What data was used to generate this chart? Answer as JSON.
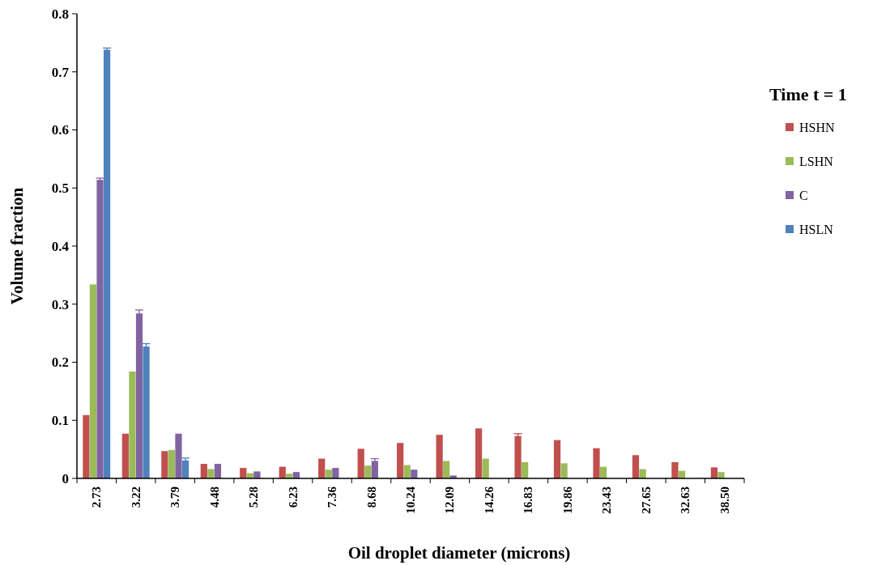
{
  "chart_data": {
    "type": "bar",
    "xlabel": "Oil droplet diameter (microns)",
    "ylabel": "Volume fraction",
    "legend_title": "Time t = 1",
    "legend": "right",
    "categories": [
      "2.73",
      "3.22",
      "3.79",
      "4.48",
      "5.28",
      "6.23",
      "7.36",
      "8.68",
      "10.24",
      "12.09",
      "14.26",
      "16.83",
      "19.86",
      "23.43",
      "27.65",
      "32.63",
      "38.50"
    ],
    "series": [
      {
        "name": "HSHN",
        "color": "#c0504d",
        "values": [
          0.109,
          0.077,
          0.047,
          0.025,
          0.018,
          0.02,
          0.034,
          0.051,
          0.061,
          0.075,
          0.086,
          0.073,
          0.066,
          0.052,
          0.04,
          0.028,
          0.019
        ],
        "errors": [
          null,
          null,
          null,
          null,
          null,
          null,
          null,
          null,
          null,
          null,
          null,
          0.004,
          null,
          null,
          null,
          null,
          null
        ]
      },
      {
        "name": "LSHN",
        "color": "#9bbb59",
        "values": [
          0.334,
          0.184,
          0.049,
          0.016,
          0.009,
          0.008,
          0.015,
          0.022,
          0.023,
          0.03,
          0.034,
          0.028,
          0.026,
          0.02,
          0.016,
          0.013,
          0.011
        ]
      },
      {
        "name": "C",
        "color": "#8064a2",
        "values": [
          0.514,
          0.284,
          0.077,
          0.025,
          0.012,
          0.011,
          0.018,
          0.03,
          0.015,
          0.005,
          null,
          0,
          0,
          0,
          0,
          0,
          0
        ],
        "errors": [
          0.003,
          0.006,
          null,
          null,
          null,
          null,
          null,
          0.004,
          null,
          null,
          null,
          null,
          null,
          null,
          null,
          null,
          null
        ]
      },
      {
        "name": "HSLN",
        "color": "#4f81bd",
        "values": [
          0.738,
          0.227,
          0.031,
          null,
          null,
          null,
          0,
          0,
          0,
          0,
          0,
          0,
          0,
          0,
          0,
          0,
          0
        ],
        "errors": [
          0.003,
          0.005,
          0.004,
          null,
          null,
          null,
          null,
          null,
          null,
          null,
          null,
          null,
          null,
          null,
          null,
          null,
          null
        ]
      }
    ],
    "ylim": [
      0,
      0.8
    ],
    "yticks": [
      0,
      0.1,
      0.2,
      0.3,
      0.4,
      0.5,
      0.6,
      0.7,
      0.8
    ],
    "grid": false
  }
}
